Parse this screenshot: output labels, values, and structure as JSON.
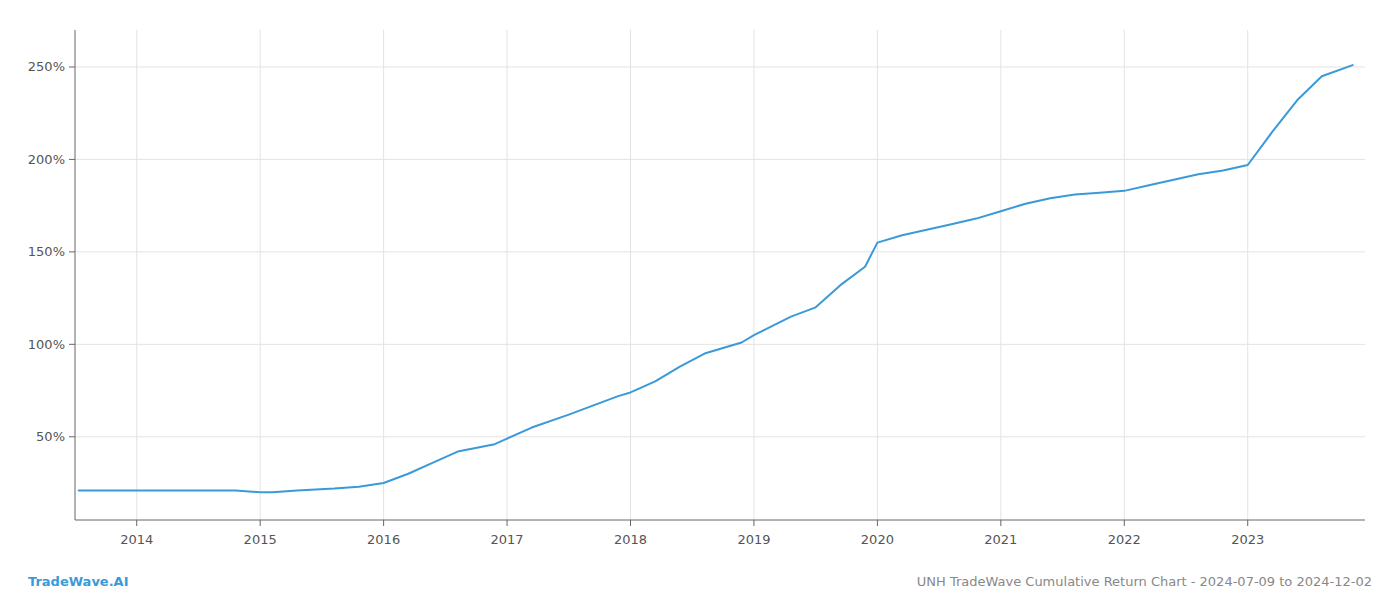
{
  "chart_data": {
    "type": "line",
    "x": [
      2013.53,
      2013.7,
      2014.0,
      2014.2,
      2014.5,
      2014.8,
      2015.0,
      2015.1,
      2015.3,
      2015.6,
      2015.8,
      2016.0,
      2016.2,
      2016.4,
      2016.6,
      2016.9,
      2017.0,
      2017.2,
      2017.5,
      2017.7,
      2017.9,
      2018.0,
      2018.2,
      2018.4,
      2018.6,
      2018.9,
      2019.0,
      2019.15,
      2019.3,
      2019.5,
      2019.7,
      2019.9,
      2020.0,
      2020.2,
      2020.4,
      2020.6,
      2020.8,
      2021.0,
      2021.2,
      2021.4,
      2021.6,
      2021.8,
      2022.0,
      2022.2,
      2022.4,
      2022.6,
      2022.8,
      2023.0,
      2023.2,
      2023.4,
      2023.6,
      2023.85
    ],
    "values": [
      21,
      21,
      21,
      21,
      21,
      21,
      20,
      20,
      21,
      22,
      23,
      25,
      30,
      36,
      42,
      46,
      49,
      55,
      62,
      67,
      72,
      74,
      80,
      88,
      95,
      101,
      105,
      110,
      115,
      120,
      132,
      142,
      155,
      159,
      162,
      165,
      168,
      172,
      176,
      179,
      181,
      182,
      183,
      186,
      189,
      192,
      194,
      197,
      215,
      232,
      245,
      251
    ],
    "color": "#3a9ad9",
    "xlim": [
      2013.5,
      2023.95
    ],
    "xticks": [
      2014,
      2015,
      2016,
      2017,
      2018,
      2019,
      2020,
      2021,
      2022,
      2023
    ],
    "ylim": [
      5,
      270
    ],
    "yticks": [
      {
        "value": 50,
        "label": "50%"
      },
      {
        "value": 100,
        "label": "100%"
      },
      {
        "value": 150,
        "label": "150%"
      },
      {
        "value": 200,
        "label": "200%"
      },
      {
        "value": 250,
        "label": "250%"
      }
    ],
    "grid": true,
    "annotations": [
      "TradeWave.AI",
      "UNH TradeWave Cumulative Return Chart - 2024-07-09 to 2024-12-02"
    ]
  }
}
